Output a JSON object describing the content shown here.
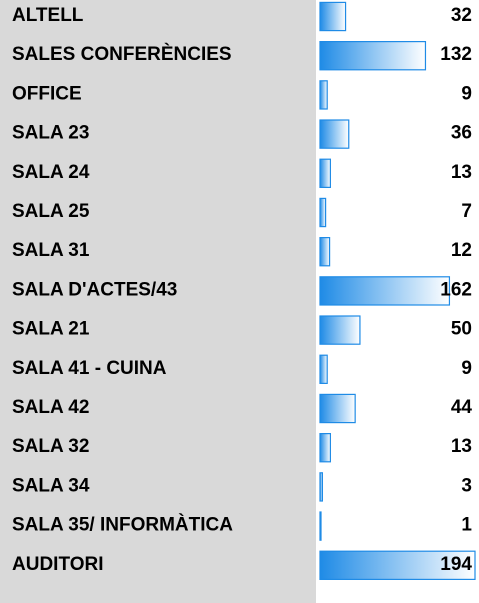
{
  "chart_data": {
    "type": "bar",
    "categories": [
      "ALTELL",
      "SALES CONFERÈNCIES",
      "OFFICE",
      "SALA 23",
      "SALA 24",
      "SALA 25",
      "SALA 31",
      "SALA D'ACTES/43",
      "SALA 21",
      "SALA 41 - CUINA",
      "SALA 42",
      "SALA 32",
      "SALA 34",
      "SALA 35/ INFORMÀTICA",
      "AUDITORI"
    ],
    "values": [
      32,
      132,
      9,
      36,
      13,
      7,
      12,
      162,
      50,
      9,
      44,
      13,
      3,
      1,
      194
    ],
    "color": "#1f8be6",
    "xlim": [
      0,
      194
    ]
  }
}
